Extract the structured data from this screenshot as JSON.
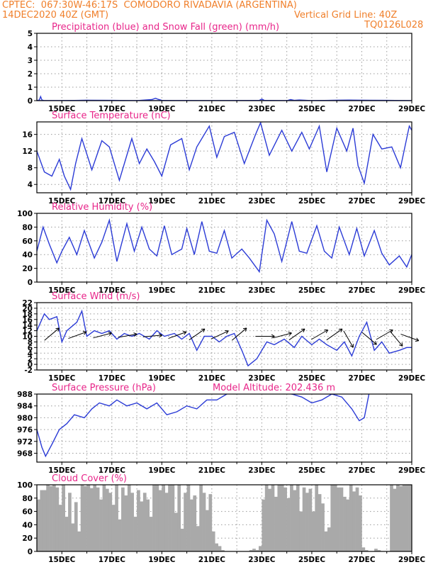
{
  "header": {
    "line1": "CPTEC:  067:30W-46:17S  COMODORO RIVADAVIA (ARGENTINA)",
    "date": "14DEC2020 40Z (GMT)",
    "grid_note": "Vertical Grid Line: 40Z",
    "code": "TQ0126L028"
  },
  "colors": {
    "header": "#f07f2a",
    "title": "#e8268a",
    "series": "#2b3bd6",
    "cloud": "#a9a9a9"
  },
  "x_axis": {
    "labels": [
      "15DEC",
      "17DEC",
      "19DEC",
      "21DEC",
      "23DEC",
      "25DEC",
      "27DEC",
      "29DEC"
    ],
    "start_day": 14.0,
    "end_day": 29.0
  },
  "chart_data": [
    {
      "id": "precip",
      "type": "line",
      "title": "Precipitation (blue) and Snow Fall (green) (mm/h)",
      "ylim": [
        0,
        5
      ],
      "yticks": [
        0,
        1,
        2,
        3,
        4,
        5
      ],
      "series": [
        {
          "color": "#2b3bd6",
          "x": [
            14.0,
            14.1,
            14.15,
            14.2,
            14.3,
            15.0,
            16.0,
            17.0,
            18.0,
            18.6,
            18.75,
            18.85,
            19.0,
            19.5,
            21.0,
            22.0,
            22.9,
            23.0,
            23.1,
            24.0,
            24.15,
            24.3,
            24.5,
            25.0,
            26.0,
            26.5,
            27.0,
            28.0,
            29.0
          ],
          "y": [
            0,
            0.05,
            0.3,
            0.05,
            0,
            0,
            0.02,
            0,
            0,
            0.08,
            0.18,
            0.1,
            0.02,
            0,
            0,
            0,
            0.02,
            0.12,
            0.02,
            0,
            0.08,
            0.02,
            0.05,
            0,
            0.03,
            0.04,
            0.02,
            0,
            0
          ]
        },
        {
          "color": "#22a02a",
          "x": [
            14.0,
            15.0,
            16.0,
            17.0,
            18.0,
            19.0,
            20.0,
            21.0,
            22.0,
            23.0,
            24.0,
            25.0,
            26.0,
            27.0,
            28.0,
            29.0
          ],
          "y": [
            0,
            0,
            0.03,
            0.02,
            0,
            0,
            0.01,
            0,
            0.01,
            0,
            0,
            0,
            0.02,
            0.03,
            0.02,
            0
          ]
        }
      ]
    },
    {
      "id": "temperature",
      "type": "line",
      "title": "Surface Temperature (nC)",
      "ylim": [
        2,
        19
      ],
      "yticks": [
        4,
        8,
        12,
        16
      ],
      "series": [
        {
          "color": "#2b3bd6",
          "x": [
            14.0,
            14.3,
            14.6,
            14.9,
            15.1,
            15.35,
            15.55,
            15.8,
            16.2,
            16.6,
            16.9,
            17.3,
            17.8,
            18.1,
            18.4,
            18.7,
            19.0,
            19.35,
            19.8,
            20.1,
            20.4,
            20.9,
            21.2,
            21.5,
            21.9,
            22.3,
            22.75,
            22.95,
            23.3,
            23.8,
            24.2,
            24.6,
            24.9,
            25.3,
            25.6,
            26.0,
            26.4,
            26.65,
            26.85,
            27.1,
            27.45,
            27.8,
            28.2,
            28.55,
            28.9,
            29.0
          ],
          "y": [
            12.0,
            7.0,
            6.0,
            10.0,
            6.0,
            2.8,
            9.0,
            15.0,
            7.5,
            14.5,
            13.0,
            5.0,
            15.0,
            9.0,
            12.5,
            9.5,
            6.0,
            13.5,
            15.0,
            7.5,
            13.0,
            18.0,
            10.5,
            15.5,
            16.5,
            9.0,
            16.0,
            18.8,
            11.0,
            17.0,
            12.0,
            16.5,
            12.5,
            18.0,
            7.0,
            17.5,
            12.0,
            17.5,
            8.5,
            4.3,
            16.0,
            12.5,
            13.0,
            8.0,
            18.0,
            17.0
          ]
        }
      ]
    },
    {
      "id": "humidity",
      "type": "line",
      "title": "Relative Humidity (%)",
      "ylim": [
        0,
        100
      ],
      "yticks": [
        0,
        20,
        40,
        60,
        80,
        100
      ],
      "series": [
        {
          "color": "#2b3bd6",
          "x": [
            14.0,
            14.25,
            14.5,
            14.8,
            15.0,
            15.3,
            15.6,
            15.9,
            16.3,
            16.6,
            16.9,
            17.2,
            17.6,
            17.9,
            18.2,
            18.5,
            18.8,
            19.1,
            19.4,
            19.8,
            20.0,
            20.3,
            20.6,
            20.9,
            21.2,
            21.5,
            21.8,
            22.2,
            22.5,
            22.9,
            23.2,
            23.5,
            23.8,
            24.2,
            24.5,
            24.8,
            25.2,
            25.5,
            25.8,
            26.1,
            26.5,
            26.8,
            27.1,
            27.5,
            27.8,
            28.1,
            28.5,
            28.8,
            29.0
          ],
          "y": [
            45,
            80,
            55,
            28,
            45,
            65,
            40,
            75,
            35,
            58,
            90,
            30,
            85,
            45,
            80,
            48,
            38,
            82,
            40,
            48,
            78,
            40,
            88,
            45,
            42,
            75,
            35,
            48,
            35,
            15,
            90,
            70,
            30,
            88,
            45,
            42,
            82,
            45,
            35,
            80,
            40,
            78,
            38,
            75,
            42,
            25,
            38,
            22,
            40
          ]
        }
      ]
    },
    {
      "id": "wind",
      "type": "line",
      "title": "Surface Wind (m/s)",
      "ylim": [
        -2,
        22
      ],
      "yticks": [
        -2,
        0,
        2,
        4,
        6,
        8,
        10,
        12,
        14,
        16,
        18,
        20,
        22
      ],
      "series": [
        {
          "color": "#2b3bd6",
          "x": [
            14.0,
            14.3,
            14.5,
            14.8,
            15.0,
            15.2,
            15.6,
            15.8,
            16.0,
            16.3,
            16.6,
            16.9,
            17.2,
            17.5,
            17.8,
            18.1,
            18.5,
            18.8,
            19.1,
            19.5,
            19.8,
            20.1,
            20.4,
            20.7,
            21.0,
            21.3,
            21.6,
            21.9,
            22.2,
            22.45,
            22.8,
            23.2,
            23.5,
            23.9,
            24.3,
            24.6,
            25.0,
            25.3,
            25.6,
            26.0,
            26.3,
            26.6,
            26.9,
            27.2,
            27.5,
            27.8,
            28.1,
            28.5,
            28.8,
            29.0
          ],
          "y": [
            12,
            18,
            16,
            17,
            8,
            12,
            15,
            19,
            10,
            12,
            11,
            12,
            9,
            11,
            10,
            11,
            9,
            12,
            10,
            11,
            9,
            11,
            5,
            10,
            10,
            8,
            10,
            11,
            5,
            -0.5,
            2,
            8,
            7,
            9,
            6,
            10,
            7,
            9,
            7,
            5,
            8,
            3,
            10,
            15,
            5,
            8,
            4,
            5,
            6,
            6
          ]
        }
      ],
      "arrows": [
        {
          "x": 14.5,
          "dir": -40
        },
        {
          "x": 15.5,
          "dir": -20
        },
        {
          "x": 16.5,
          "dir": -15
        },
        {
          "x": 17.5,
          "dir": -10
        },
        {
          "x": 18.5,
          "dir": -5
        },
        {
          "x": 19.5,
          "dir": -20
        },
        {
          "x": 20.3,
          "dir": -35
        },
        {
          "x": 21.2,
          "dir": -25
        },
        {
          "x": 22.0,
          "dir": -40
        },
        {
          "x": 23.0,
          "dir": 0
        },
        {
          "x": 23.7,
          "dir": -15
        },
        {
          "x": 24.3,
          "dir": -35
        },
        {
          "x": 25.2,
          "dir": -30
        },
        {
          "x": 25.8,
          "dir": -35
        },
        {
          "x": 26.4,
          "dir": 60
        },
        {
          "x": 27.2,
          "dir": 40
        },
        {
          "x": 27.8,
          "dir": -30
        },
        {
          "x": 28.3,
          "dir": 50
        },
        {
          "x": 28.8,
          "dir": 20
        }
      ]
    },
    {
      "id": "pressure",
      "type": "line",
      "title": "Surface Pressure (hPa)",
      "subtitle": "Model Altitude: 202.436 m",
      "ylim": [
        965,
        988
      ],
      "yticks": [
        968,
        972,
        976,
        980,
        984,
        988
      ],
      "series": [
        {
          "color": "#2b3bd6",
          "x": [
            14.0,
            14.2,
            14.35,
            14.6,
            14.9,
            15.2,
            15.5,
            15.9,
            16.2,
            16.5,
            16.9,
            17.2,
            17.6,
            18.0,
            18.4,
            18.8,
            19.2,
            19.6,
            20.0,
            20.4,
            20.8,
            21.2,
            21.6,
            21.75
          ],
          "y": [
            976,
            970,
            967,
            971,
            976,
            978,
            981,
            980,
            983,
            985,
            984,
            986,
            984,
            985,
            983,
            985,
            981,
            982,
            984,
            983,
            986,
            986,
            988,
            989
          ]
        },
        {
          "color": "#2b3bd6",
          "x": [
            23.8,
            24.2,
            24.6,
            25.0,
            25.4,
            25.8,
            26.2,
            26.6,
            26.9,
            27.1,
            27.3
          ],
          "y": [
            988.5,
            988,
            987,
            985,
            986,
            988,
            987,
            983,
            979,
            980,
            988.5
          ]
        }
      ]
    },
    {
      "id": "cloud",
      "type": "bar",
      "title": "Cloud Cover (%)",
      "ylim": [
        0,
        100
      ],
      "yticks": [
        0,
        20,
        40,
        60,
        80,
        100
      ],
      "values": [
        78,
        92,
        92,
        100,
        98,
        100,
        96,
        70,
        100,
        52,
        88,
        42,
        74,
        30,
        100,
        98,
        100,
        95,
        100,
        96,
        78,
        100,
        94,
        88,
        70,
        100,
        48,
        96,
        84,
        100,
        88,
        52,
        92,
        75,
        88,
        78,
        52,
        100,
        100,
        92,
        100,
        88,
        100,
        100,
        58,
        100,
        34,
        88,
        100,
        78,
        84,
        38,
        100,
        88,
        62,
        86,
        30,
        12,
        8,
        2,
        0,
        0,
        0,
        0,
        0,
        0,
        0,
        0,
        2,
        4,
        2,
        8,
        78,
        100,
        94,
        100,
        82,
        100,
        100,
        96,
        80,
        100,
        92,
        100,
        60,
        96,
        88,
        94,
        60,
        100,
        86,
        72,
        30,
        36,
        100,
        100,
        96,
        96,
        82,
        78,
        100,
        90,
        96,
        84,
        6,
        2,
        0,
        0,
        4,
        2,
        0,
        0,
        0,
        100,
        94,
        100,
        98,
        100,
        100,
        100
      ]
    }
  ]
}
